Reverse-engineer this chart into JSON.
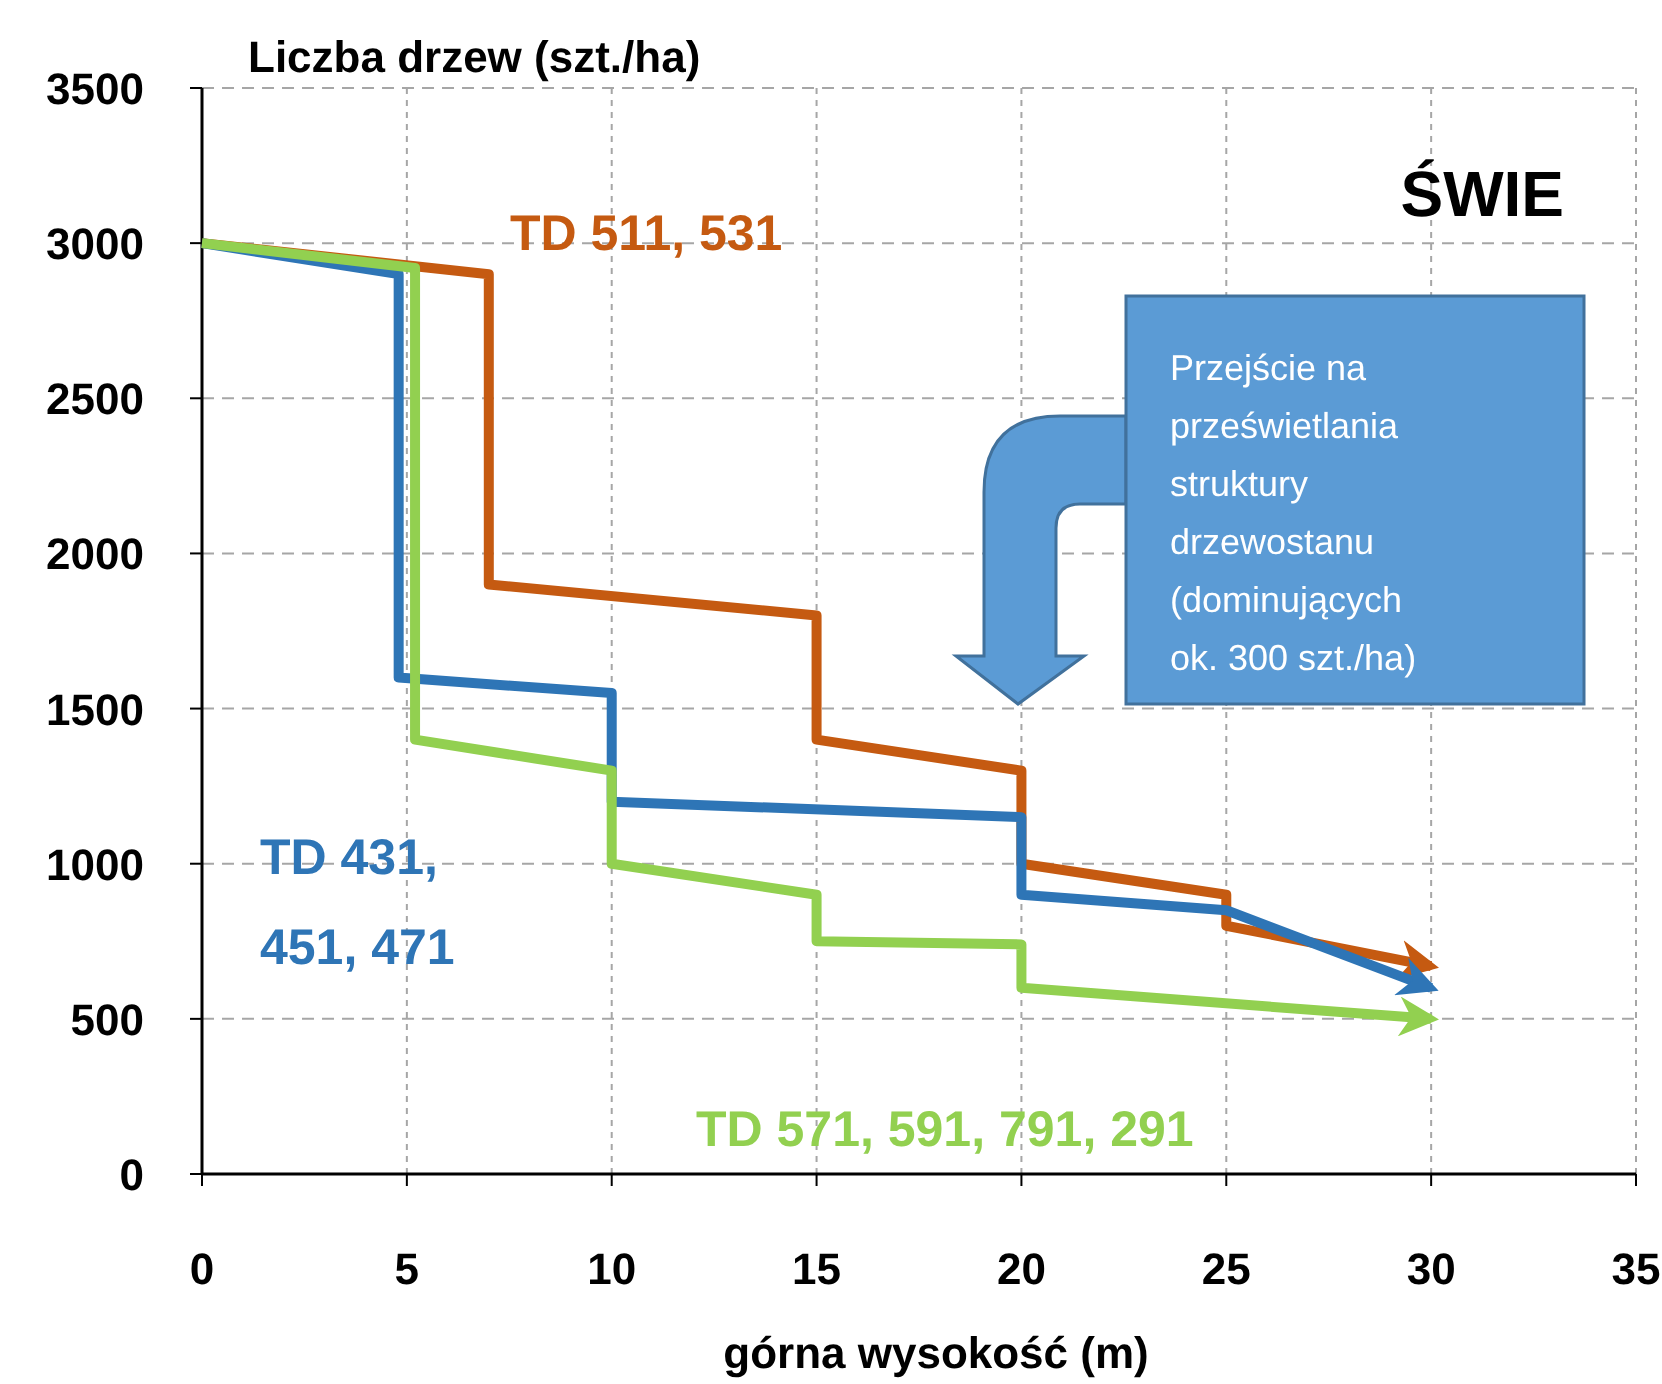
{
  "chart_data": {
    "type": "line",
    "title": "ŚWIE",
    "xlabel": "górna wysokość (m)",
    "ylabel": "Liczba drzew (szt./ha)",
    "xlim": [
      0,
      35
    ],
    "ylim": [
      0,
      3500
    ],
    "xticks": [
      0,
      5,
      10,
      15,
      20,
      25,
      30,
      35
    ],
    "yticks": [
      0,
      500,
      1000,
      1500,
      2000,
      2500,
      3000,
      3500
    ],
    "grid": true,
    "annotations": [
      "Przejście na\nprześwietlania\nstruktury\ndrzewostanu\n(dominujących\nok. 300 szt./ha)"
    ],
    "series": [
      {
        "name": "TD 511, 531",
        "color": "#c55a11",
        "x": [
          0,
          7,
          7,
          15,
          15,
          20,
          20,
          25,
          25,
          30
        ],
        "values": [
          3000,
          2900,
          1900,
          1800,
          1400,
          1300,
          1000,
          900,
          800,
          670
        ]
      },
      {
        "name": "TD 431, 451, 471",
        "color": "#2e75b6",
        "x": [
          0,
          4.8,
          4.8,
          10,
          10,
          20,
          20,
          25,
          30
        ],
        "values": [
          3000,
          2900,
          1600,
          1550,
          1200,
          1150,
          900,
          850,
          600
        ]
      },
      {
        "name": "TD 571, 591, 791, 291",
        "color": "#92d050",
        "x": [
          0,
          5.2,
          5.2,
          10,
          10,
          15,
          15,
          20,
          20,
          30
        ],
        "values": [
          3000,
          2920,
          1400,
          1300,
          1000,
          900,
          750,
          740,
          600,
          500
        ]
      }
    ]
  }
}
